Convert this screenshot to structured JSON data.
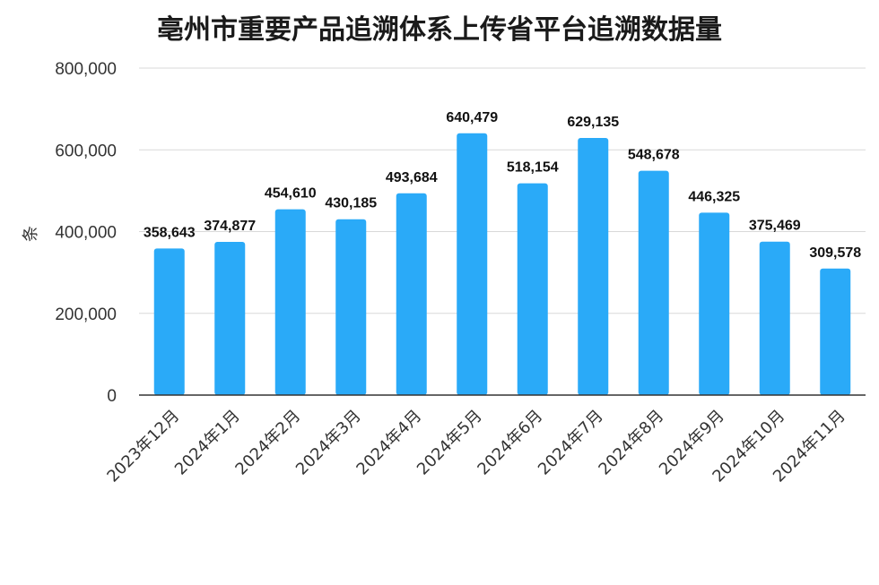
{
  "chart_data": {
    "type": "bar",
    "title": "亳州市重要产品追溯体系上传省平台追溯数据量",
    "ylabel": "条",
    "xlabel": "",
    "ylim": [
      0,
      800000
    ],
    "yticks": [
      "0",
      "200,000",
      "400,000",
      "600,000",
      "800,000"
    ],
    "ytick_values": [
      0,
      200000,
      400000,
      600000,
      800000
    ],
    "categories": [
      "2023年12月",
      "2024年1月",
      "2024年2月",
      "2024年3月",
      "2024年4月",
      "2024年5月",
      "2024年6月",
      "2024年7月",
      "2024年8月",
      "2024年9月",
      "2024年10月",
      "2024年11月"
    ],
    "values": [
      358643,
      374877,
      454610,
      430185,
      493684,
      640479,
      518154,
      629135,
      548678,
      446325,
      375469,
      309578
    ],
    "value_labels": [
      "358,643",
      "374,877",
      "454,610",
      "430,185",
      "493,684",
      "640,479",
      "518,154",
      "629,135",
      "548,678",
      "446,325",
      "375,469",
      "309,578"
    ],
    "grid": true,
    "legend": "none",
    "bar_color": "#2aaaf8"
  }
}
